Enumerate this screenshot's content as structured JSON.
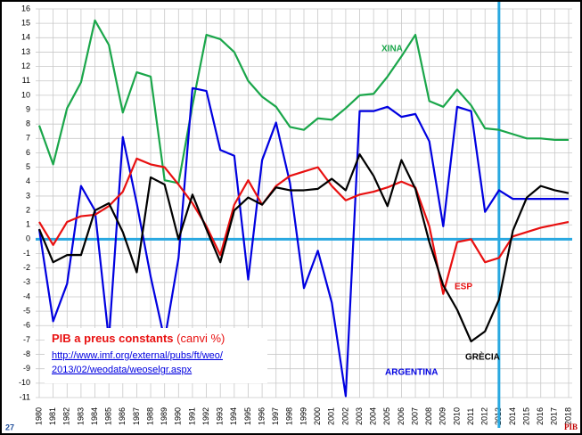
{
  "chart_data": {
    "type": "line",
    "title": "PIB a preus constants",
    "subtitle": "(canvi %)",
    "source": [
      "http://www.imf.org/external/pubs/ft/weo/",
      "2013/02/weodata/weoselgr.aspx"
    ],
    "categories": [
      "1980",
      "1981",
      "1982",
      "1983",
      "1984",
      "1985",
      "1986",
      "1987",
      "1988",
      "1989",
      "1990",
      "1991",
      "1992",
      "1993",
      "1994",
      "1995",
      "1996",
      "1997",
      "1998",
      "1999",
      "2000",
      "2001",
      "2002",
      "2003",
      "2004",
      "2005",
      "2006",
      "2007",
      "2008",
      "2009",
      "2010",
      "2011",
      "2012",
      "2013",
      "2014",
      "2015",
      "2016",
      "2017",
      "2018"
    ],
    "series": [
      {
        "name": "XINA",
        "color": "#1aa64a",
        "values": [
          7.9,
          5.2,
          9.1,
          10.9,
          15.2,
          13.5,
          8.8,
          11.6,
          11.3,
          4.1,
          3.9,
          9.3,
          14.2,
          13.9,
          13.0,
          11.0,
          9.9,
          9.2,
          7.8,
          7.6,
          8.4,
          8.3,
          9.1,
          10.0,
          10.1,
          11.3,
          12.7,
          14.2,
          9.6,
          9.2,
          10.4,
          9.3,
          7.7,
          7.6,
          7.3,
          7.0,
          7.0,
          6.9,
          6.9
        ]
      },
      {
        "name": "ARGENTINA",
        "color": "#0000e0",
        "values": [
          0.7,
          -5.7,
          -3.1,
          3.7,
          2.0,
          -7.0,
          7.1,
          2.5,
          -2.6,
          -7.0,
          -1.3,
          10.5,
          10.3,
          6.2,
          5.8,
          -2.8,
          5.5,
          8.1,
          3.9,
          -3.4,
          -0.8,
          -4.4,
          -10.9,
          8.9,
          8.9,
          9.2,
          8.5,
          8.7,
          6.8,
          0.9,
          9.2,
          8.9,
          1.9,
          3.4,
          2.8,
          2.8,
          2.8,
          2.8,
          2.8
        ]
      },
      {
        "name": "ESP",
        "color": "#e81010",
        "values": [
          1.2,
          -0.4,
          1.2,
          1.6,
          1.7,
          2.3,
          3.3,
          5.6,
          5.2,
          5.0,
          3.8,
          2.5,
          0.9,
          -1.1,
          2.4,
          4.1,
          2.4,
          3.7,
          4.4,
          4.7,
          5.0,
          3.7,
          2.7,
          3.1,
          3.3,
          3.6,
          4.0,
          3.6,
          0.9,
          -3.8,
          -0.2,
          0.0,
          -1.6,
          -1.3,
          0.2,
          0.5,
          0.8,
          1.0,
          1.2
        ]
      },
      {
        "name": "GRÈCIA",
        "color": "#000000",
        "values": [
          0.7,
          -1.6,
          -1.1,
          -1.1,
          2.0,
          2.5,
          0.5,
          -2.3,
          4.3,
          3.8,
          0.0,
          3.1,
          0.7,
          -1.6,
          2.0,
          2.9,
          2.4,
          3.6,
          3.4,
          3.4,
          3.5,
          4.2,
          3.4,
          5.9,
          4.4,
          2.3,
          5.5,
          3.5,
          -0.2,
          -3.2,
          -4.9,
          -7.1,
          -6.4,
          -4.2,
          0.6,
          2.9,
          3.7,
          3.4,
          3.2
        ]
      }
    ],
    "ylim": [
      -11,
      16
    ],
    "yticks": [
      -11,
      -10,
      -9,
      -8,
      -7,
      -6,
      -5,
      -4,
      -3,
      -2,
      -1,
      0,
      1,
      2,
      3,
      4,
      5,
      6,
      7,
      8,
      9,
      10,
      11,
      12,
      13,
      14,
      15,
      16
    ],
    "grid": true,
    "vline": "2013"
  },
  "page_number": "27",
  "footer": "PIB"
}
